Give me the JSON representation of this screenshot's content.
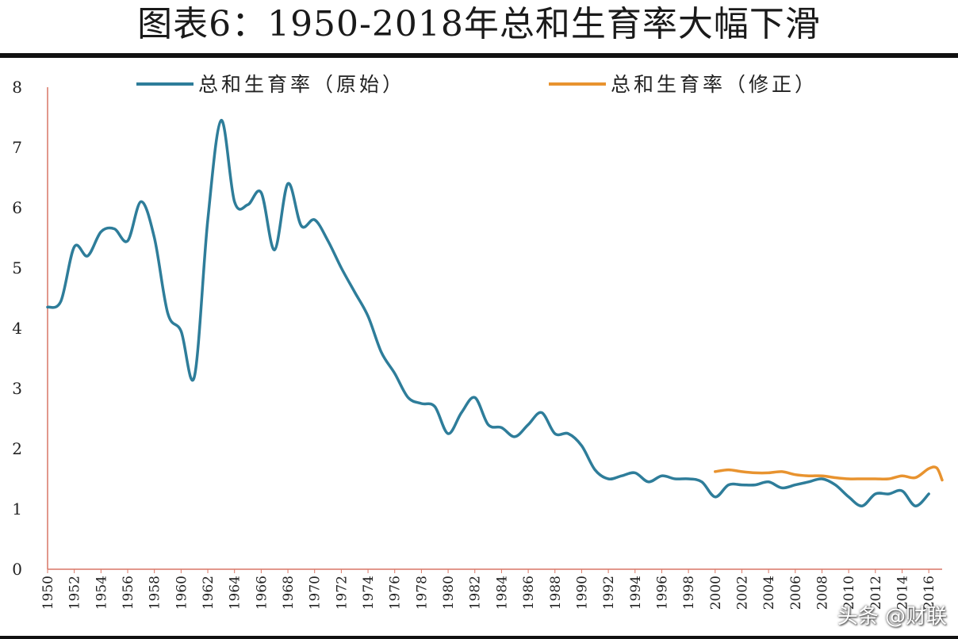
{
  "title": "图表6：1950-2018年总和生育率大幅下滑",
  "watermark": "头条 @财联",
  "chart_data": {
    "type": "line",
    "title": "图表6：1950-2018年总和生育率大幅下滑",
    "xlabel": "",
    "ylabel": "",
    "ylim": [
      0,
      8
    ],
    "yticks": [
      "0",
      "1",
      "2",
      "3",
      "4",
      "5",
      "6",
      "7",
      "8"
    ],
    "xlim": [
      1950,
      2017
    ],
    "xtick_labels": [
      "1950",
      "1952",
      "1954",
      "1956",
      "1958",
      "1960",
      "1962",
      "1964",
      "1966",
      "1968",
      "1970",
      "1972",
      "1974",
      "1976",
      "1978",
      "1980",
      "1982",
      "1984",
      "1986",
      "1988",
      "1990",
      "1992",
      "1994",
      "1996",
      "1998",
      "2000",
      "2002",
      "2004",
      "2006",
      "2008",
      "2010",
      "2012",
      "2014",
      "2016"
    ],
    "grid": false,
    "legend_position": "top",
    "series": [
      {
        "name": "总和生育率（原始）",
        "color": "#2e7d9a",
        "x": [
          1950,
          1951,
          1952,
          1953,
          1954,
          1955,
          1956,
          1957,
          1958,
          1959,
          1960,
          1961,
          1962,
          1963,
          1964,
          1965,
          1966,
          1967,
          1968,
          1969,
          1970,
          1971,
          1972,
          1973,
          1974,
          1975,
          1976,
          1977,
          1978,
          1979,
          1980,
          1981,
          1982,
          1983,
          1984,
          1985,
          1986,
          1987,
          1988,
          1989,
          1990,
          1991,
          1992,
          1993,
          1994,
          1995,
          1996,
          1997,
          1998,
          1999,
          2000,
          2001,
          2002,
          2003,
          2004,
          2005,
          2006,
          2007,
          2008,
          2009,
          2010,
          2011,
          2012,
          2013,
          2014,
          2015,
          2016
        ],
        "y": [
          4.35,
          4.45,
          5.35,
          5.2,
          5.6,
          5.65,
          5.45,
          6.1,
          5.5,
          4.25,
          3.95,
          3.2,
          5.8,
          7.45,
          6.1,
          6.05,
          6.25,
          5.3,
          6.4,
          5.7,
          5.8,
          5.45,
          5.0,
          4.6,
          4.2,
          3.6,
          3.25,
          2.85,
          2.75,
          2.7,
          2.25,
          2.6,
          2.85,
          2.4,
          2.35,
          2.2,
          2.4,
          2.6,
          2.25,
          2.25,
          2.05,
          1.65,
          1.5,
          1.55,
          1.6,
          1.45,
          1.55,
          1.5,
          1.5,
          1.45,
          1.2,
          1.4,
          1.4,
          1.4,
          1.45,
          1.35,
          1.4,
          1.45,
          1.5,
          1.4,
          1.2,
          1.05,
          1.25,
          1.25,
          1.3,
          1.05,
          1.25
        ]
      },
      {
        "name": "总和生育率（修正）",
        "color": "#e8932f",
        "x": [
          2000,
          2001,
          2002,
          2003,
          2004,
          2005,
          2006,
          2007,
          2008,
          2009,
          2010,
          2011,
          2012,
          2013,
          2014,
          2015,
          2016,
          2016.6,
          2017
        ],
        "y": [
          1.62,
          1.65,
          1.62,
          1.6,
          1.6,
          1.62,
          1.57,
          1.55,
          1.55,
          1.52,
          1.5,
          1.5,
          1.5,
          1.5,
          1.55,
          1.52,
          1.67,
          1.68,
          1.48
        ]
      }
    ]
  }
}
